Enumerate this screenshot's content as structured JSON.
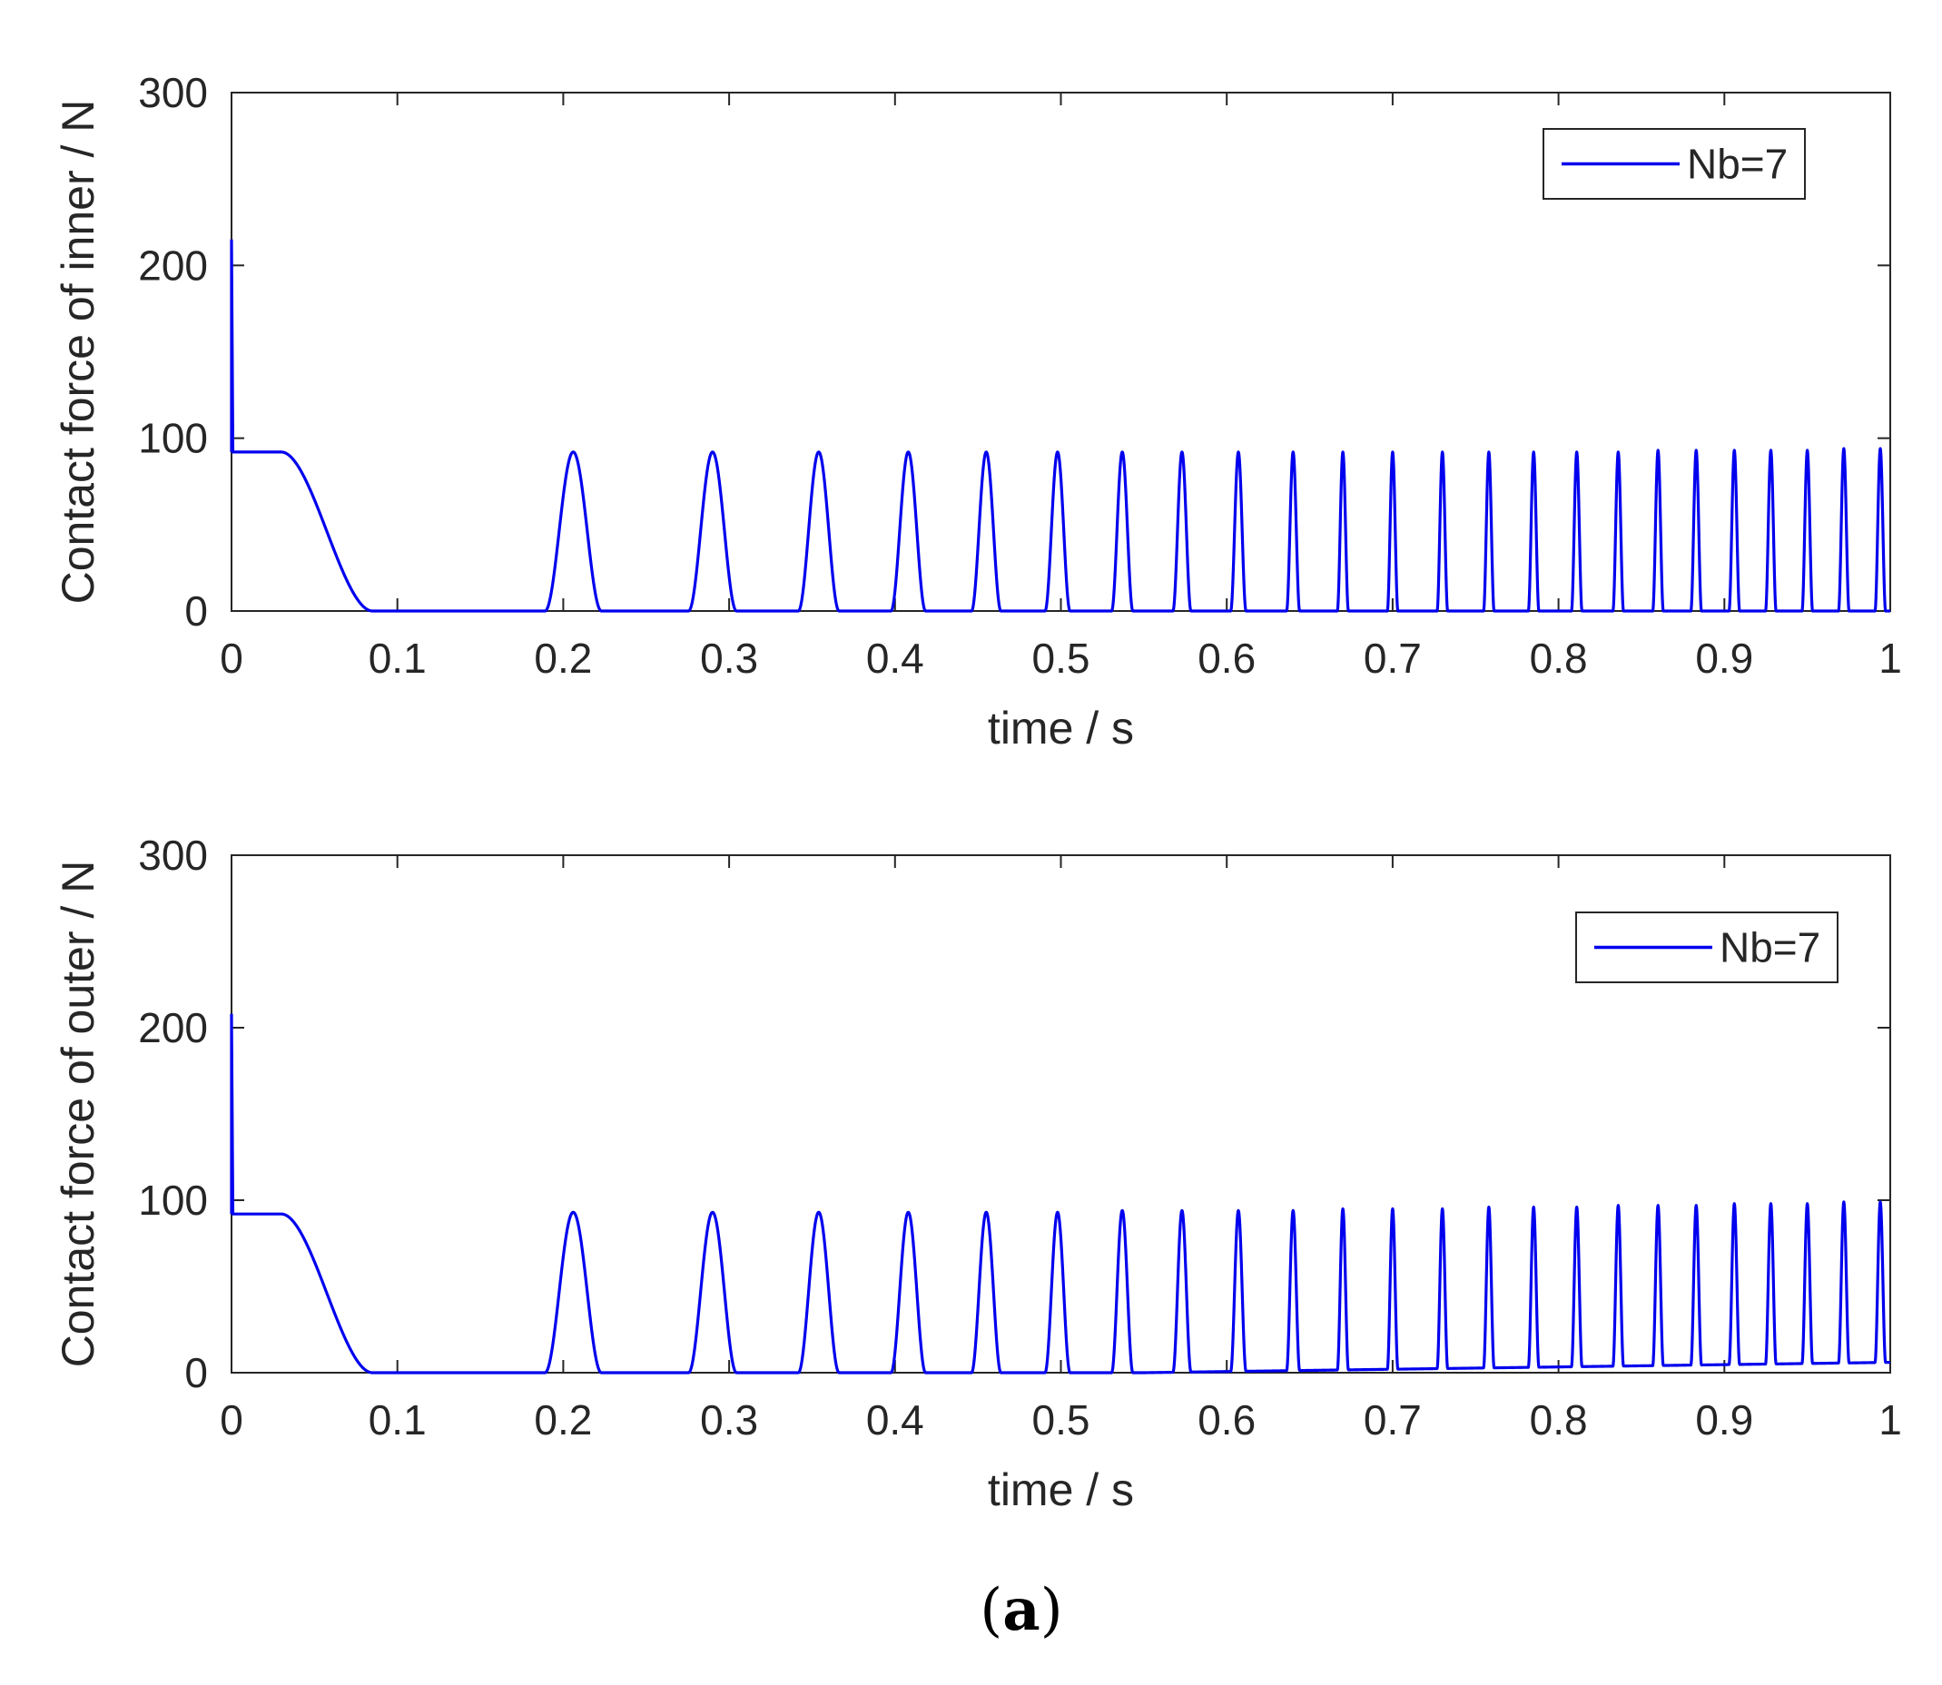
{
  "caption": {
    "open": "(",
    "letter": "a",
    "close": ")"
  },
  "colors": {
    "series": "#0000ee",
    "axis": "#262626"
  },
  "chart_data": [
    {
      "type": "line",
      "title": "",
      "xlabel": "time / s",
      "ylabel": "Contact force of inner / N",
      "xlim": [
        0,
        1
      ],
      "ylim": [
        0,
        300
      ],
      "xticks": [
        0,
        0.1,
        0.2,
        0.3,
        0.4,
        0.5,
        0.6,
        0.7,
        0.8,
        0.9,
        1
      ],
      "xtick_labels": [
        "0",
        "0.1",
        "0.2",
        "0.3",
        "0.4",
        "0.5",
        "0.6",
        "0.7",
        "0.8",
        "0.9",
        "1"
      ],
      "yticks": [
        0,
        100,
        200,
        300
      ],
      "ytick_labels": [
        "0",
        "100",
        "200",
        "300"
      ],
      "grid": false,
      "legend_position": "top-right",
      "series": [
        {
          "name": "Nb=7",
          "initial_spike": 215,
          "initial_plateau": 92,
          "decay_start": 0.03,
          "decay_end": 0.085,
          "baseline_drift_end": 0,
          "pulse_centers": [
            0.206,
            0.29,
            0.354,
            0.408,
            0.455,
            0.498,
            0.537,
            0.573,
            0.607,
            0.64,
            0.67,
            0.7,
            0.73,
            0.758,
            0.785,
            0.811,
            0.836,
            0.86,
            0.883,
            0.906,
            0.928,
            0.95,
            0.972,
            0.994
          ],
          "pulse_peaks": [
            92,
            92,
            92,
            92,
            92,
            92,
            92,
            92,
            92,
            92,
            92,
            92,
            92,
            92,
            92,
            92,
            92,
            93,
            93,
            93,
            93,
            93,
            94,
            94
          ]
        }
      ]
    },
    {
      "type": "line",
      "title": "",
      "xlabel": "time / s",
      "ylabel": "Contact force of outer / N",
      "xlim": [
        0,
        1
      ],
      "ylim": [
        0,
        300
      ],
      "xticks": [
        0,
        0.1,
        0.2,
        0.3,
        0.4,
        0.5,
        0.6,
        0.7,
        0.8,
        0.9,
        1
      ],
      "xtick_labels": [
        "0",
        "0.1",
        "0.2",
        "0.3",
        "0.4",
        "0.5",
        "0.6",
        "0.7",
        "0.8",
        "0.9",
        "1"
      ],
      "yticks": [
        0,
        100,
        200,
        300
      ],
      "ytick_labels": [
        "0",
        "100",
        "200",
        "300"
      ],
      "grid": false,
      "legend_position": "top-right",
      "series": [
        {
          "name": "Nb=7",
          "initial_spike": 208,
          "initial_plateau": 92,
          "decay_start": 0.03,
          "decay_end": 0.085,
          "baseline_drift_end": 6,
          "pulse_centers": [
            0.206,
            0.29,
            0.354,
            0.408,
            0.455,
            0.498,
            0.537,
            0.573,
            0.607,
            0.64,
            0.67,
            0.7,
            0.73,
            0.758,
            0.785,
            0.811,
            0.836,
            0.86,
            0.883,
            0.906,
            0.928,
            0.95,
            0.972,
            0.994
          ],
          "pulse_peaks": [
            93,
            93,
            93,
            93,
            93,
            93,
            94,
            94,
            94,
            94,
            95,
            95,
            95,
            96,
            96,
            96,
            97,
            97,
            97,
            98,
            98,
            98,
            99,
            99
          ]
        }
      ]
    }
  ]
}
